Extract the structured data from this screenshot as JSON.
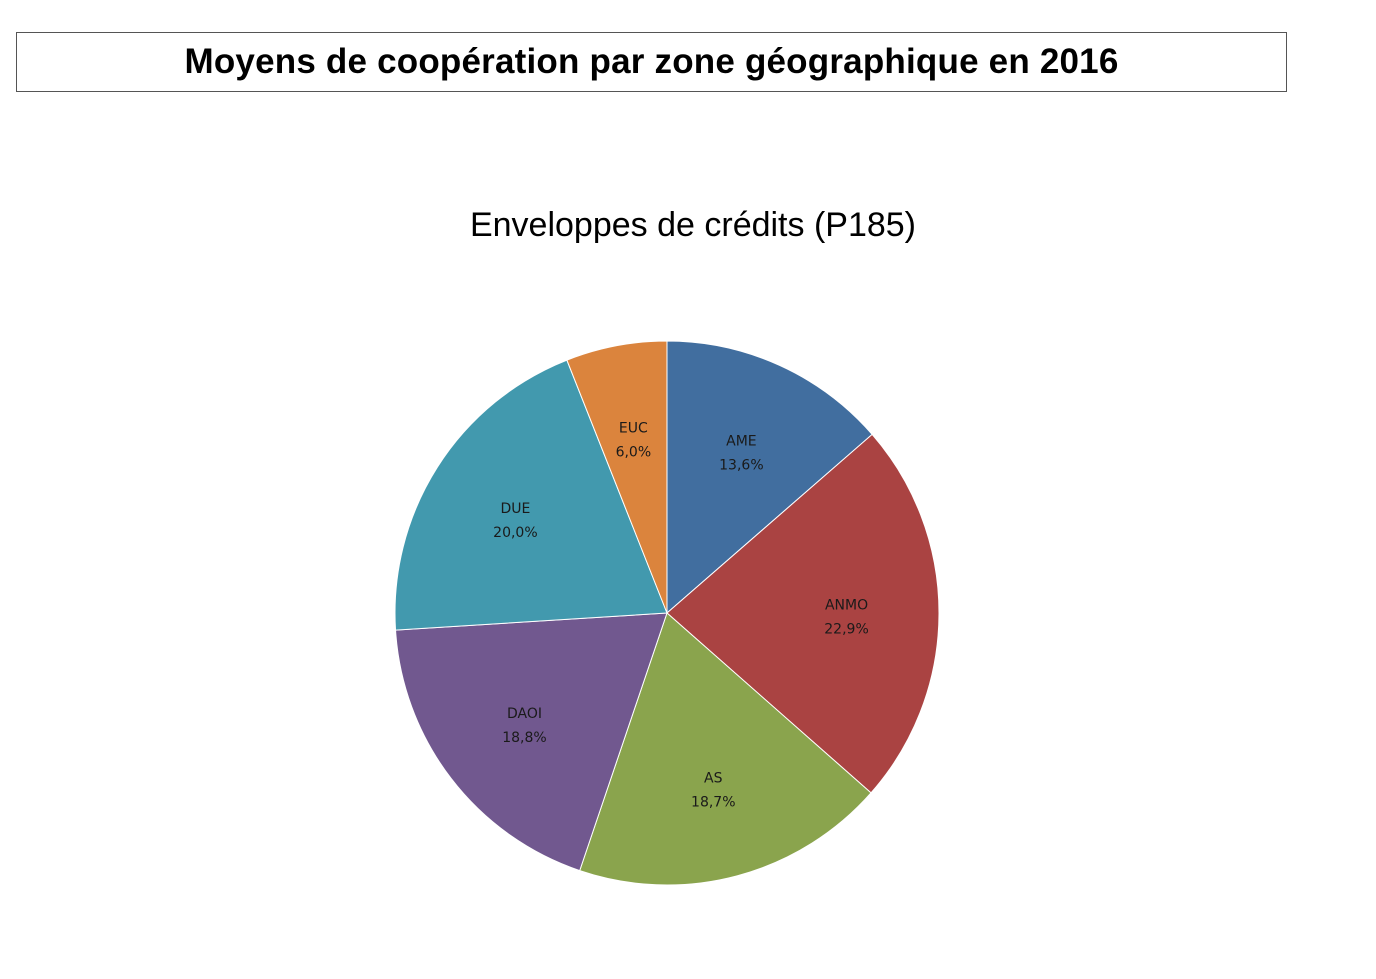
{
  "header": {
    "title": "Moyens de coopération par zone géographique en 2016"
  },
  "chart_data": {
    "type": "pie",
    "title": "Enveloppes de crédits (P185)",
    "start": "12 o'clock, clockwise",
    "slices": [
      {
        "label": "AME",
        "value": 13.6,
        "value_label": "13,6%",
        "color": "#416E9F"
      },
      {
        "label": "ANMO",
        "value": 22.9,
        "value_label": "22,9%",
        "color": "#AA4342"
      },
      {
        "label": "AS",
        "value": 18.7,
        "value_label": "18,7%",
        "color": "#8AA44D"
      },
      {
        "label": "DAOI",
        "value": 18.8,
        "value_label": "18,8%",
        "color": "#71588F"
      },
      {
        "label": "DUE",
        "value": 20.0,
        "value_label": "20,0%",
        "color": "#4299AE"
      },
      {
        "label": "EUC",
        "value": 6.0,
        "value_label": "6,0%",
        "color": "#DB843D"
      }
    ]
  }
}
